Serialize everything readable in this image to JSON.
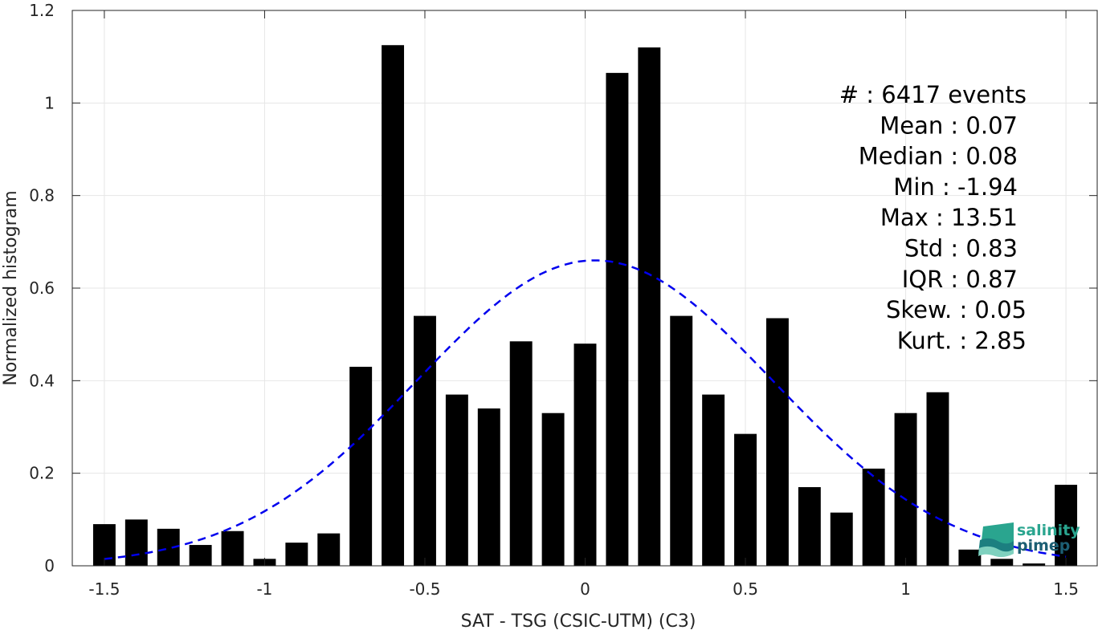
{
  "chart_data": {
    "type": "bar",
    "xlabel": "SAT - TSG (CSIC-UTM) (C3)",
    "ylabel": "Normalized histogram",
    "xlim": [
      -1.6,
      1.6
    ],
    "ylim": [
      0,
      1.2
    ],
    "xticks": [
      -1.5,
      -1,
      -0.5,
      0,
      0.5,
      1,
      1.5
    ],
    "xtick_labels": [
      "-1.5",
      "-1",
      "-0.5",
      "0",
      "0.5",
      "1",
      "1.5"
    ],
    "yticks": [
      0,
      0.2,
      0.4,
      0.6,
      0.8,
      1,
      1.2
    ],
    "ytick_labels": [
      "0",
      "0.2",
      "0.4",
      "0.6",
      "0.8",
      "1",
      "1.2"
    ],
    "grid": true,
    "bar_color": "#000000",
    "bin_width": 0.1,
    "x": [
      -1.5,
      -1.4,
      -1.3,
      -1.2,
      -1.1,
      -1.0,
      -0.9,
      -0.8,
      -0.7,
      -0.6,
      -0.5,
      -0.4,
      -0.3,
      -0.2,
      -0.1,
      0.0,
      0.1,
      0.2,
      0.3,
      0.4,
      0.5,
      0.6,
      0.7,
      0.8,
      0.9,
      1.0,
      1.1,
      1.2,
      1.3,
      1.4,
      1.5
    ],
    "values": [
      0.09,
      0.1,
      0.08,
      0.045,
      0.075,
      0.015,
      0.05,
      0.07,
      0.43,
      1.125,
      0.54,
      0.37,
      0.34,
      0.485,
      0.33,
      0.48,
      1.065,
      1.12,
      0.54,
      0.37,
      0.285,
      0.535,
      0.17,
      0.115,
      0.21,
      0.33,
      0.375,
      0.035,
      0.015,
      0.005,
      0.175
    ],
    "fit_curve": {
      "type": "gaussian",
      "style": "dashed",
      "color": "#0000ee",
      "mean": 0.03,
      "peak": 0.66,
      "sigma": 0.555,
      "x_range": [
        -1.5,
        1.5
      ]
    },
    "annotations": [
      "#  : 6417 events",
      "Mean : 0.07",
      "Median : 0.08",
      "Min : -1.94",
      "Max : 13.51",
      "Std : 0.83",
      "IQR : 0.87",
      "Skew. : 0.05",
      "Kurt. : 2.85"
    ]
  },
  "logo": {
    "line1": "salinity",
    "line2": "pimep",
    "icon": "salinity-wave-icon",
    "color_top": "#2aa58f",
    "color_bottom": "#1c5e73"
  }
}
